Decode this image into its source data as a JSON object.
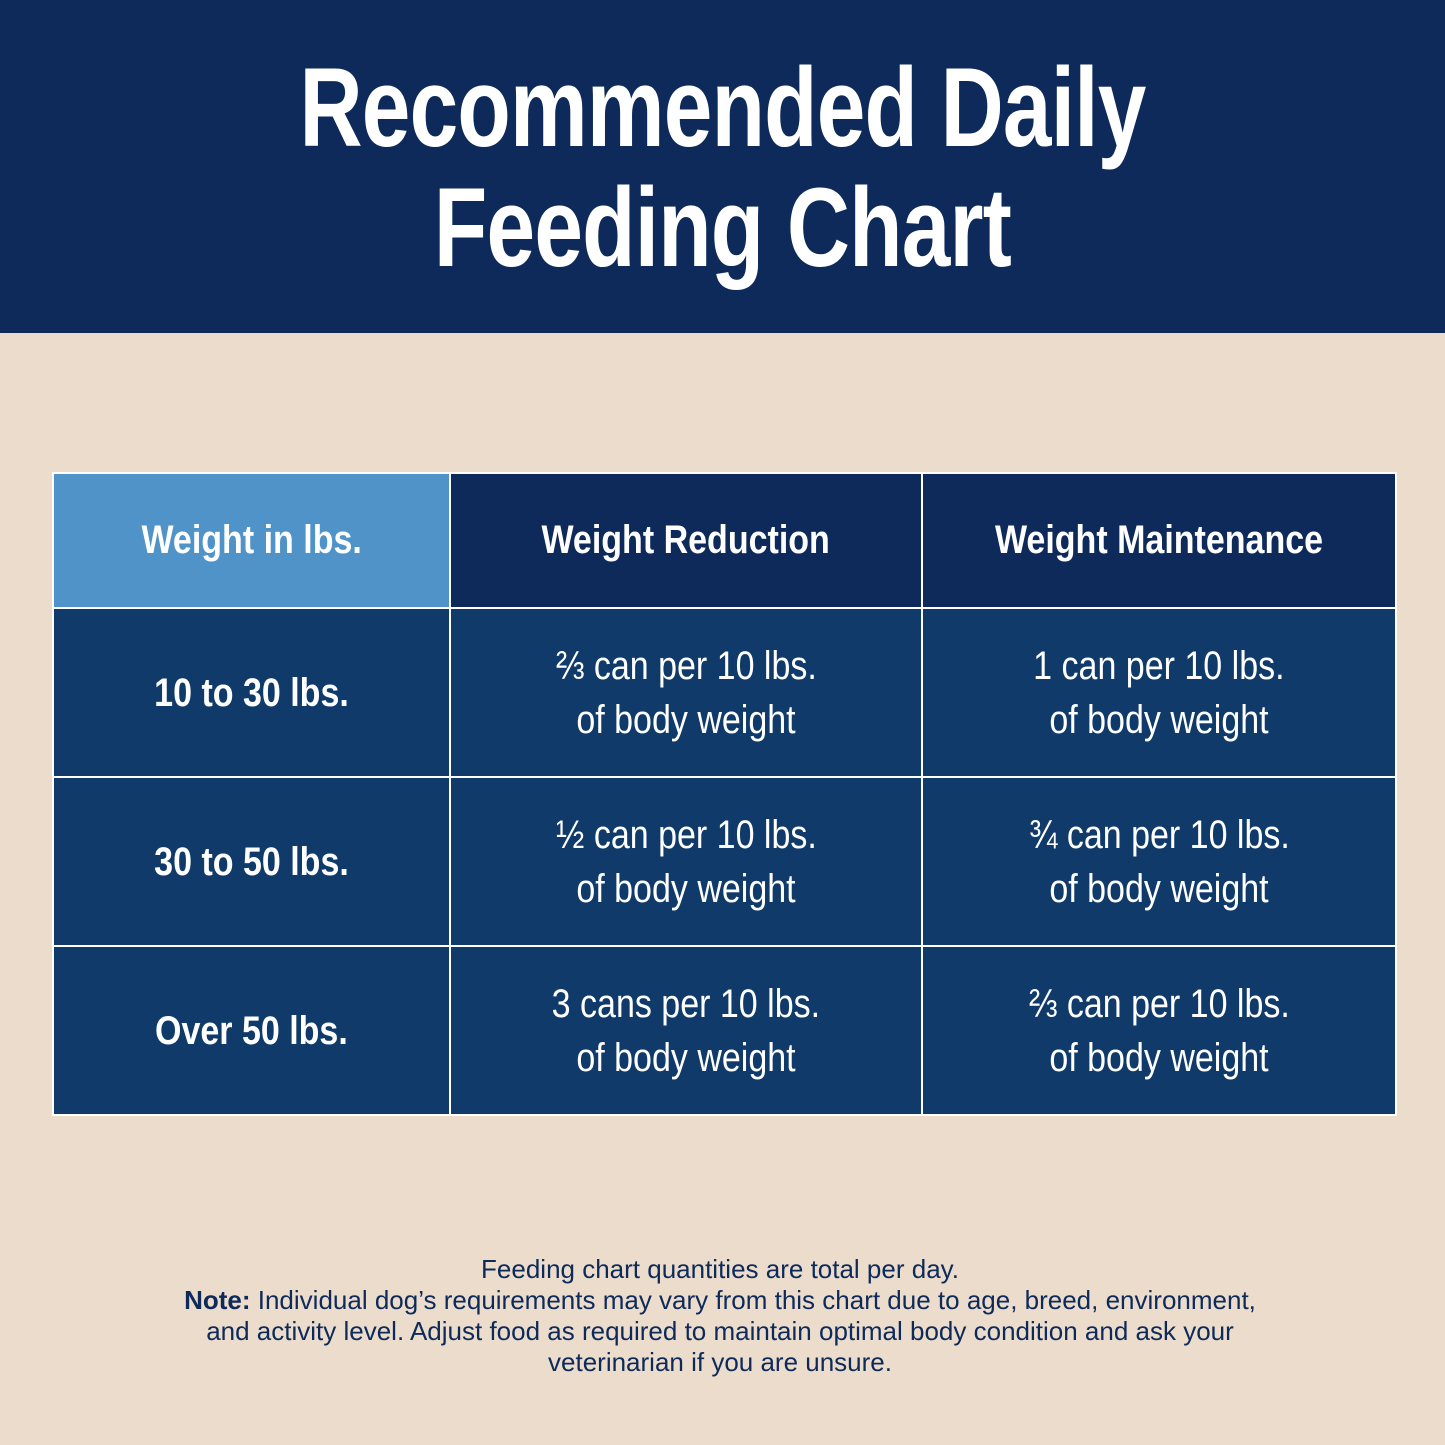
{
  "header": {
    "title_lines": [
      "Recommended Daily",
      "Feeding Chart"
    ]
  },
  "table": {
    "headers": [
      "Weight in lbs.",
      "Weight Reduction",
      "Weight Maintenance"
    ],
    "rows": [
      [
        "10 to 30 lbs.",
        [
          "⅔ can per 10 lbs.",
          "of body weight"
        ],
        [
          "1 can per 10 lbs.",
          "of body weight"
        ]
      ],
      [
        "30 to 50 lbs.",
        [
          "½ can per 10 lbs.",
          "of body weight"
        ],
        [
          "¾ can per 10 lbs.",
          "of body weight"
        ]
      ],
      [
        "Over 50 lbs.",
        [
          "3 cans per 10 lbs.",
          "of body weight"
        ],
        [
          "⅔ can per 10 lbs.",
          "of body weight"
        ]
      ]
    ]
  },
  "footnote": {
    "line1": "Feeding chart quantities are total per day.",
    "note_label": "Note:",
    "note_text": "Individual dog’s requirements may vary from this chart due to age, breed, environment, and activity level. Adjust food as required to maintain optimal body condition and ask your veterinarian if you are unsure."
  }
}
